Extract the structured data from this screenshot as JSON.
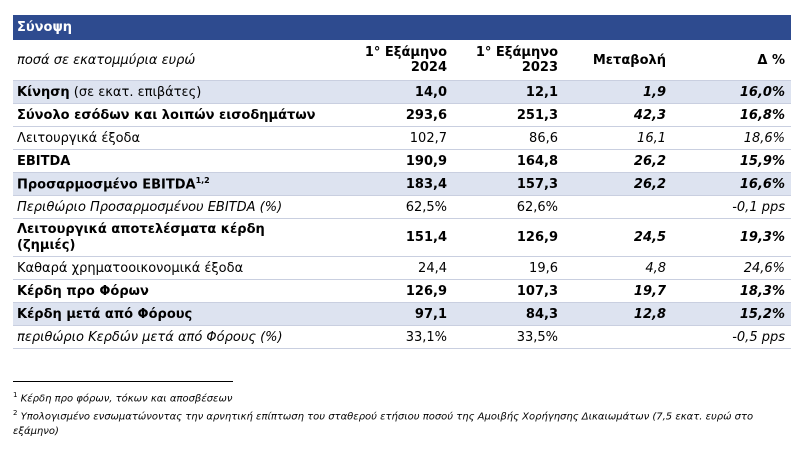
{
  "title": "Σύνοψη",
  "header": {
    "unit_label": "ποσά σε εκατομμύρια ευρώ",
    "col1": "1° Εξάμηνο 2024",
    "col1_a": "1° Εξάμηνο",
    "col1_b": "2024",
    "col2_a": "1° Εξάμηνο",
    "col2_b": "2023",
    "col3": "Μεταβολή",
    "col4": "Δ %"
  },
  "rows": [
    {
      "label_bold": "Κίνηση",
      "label_rest": " (σε εκατ. επιβάτες)",
      "v2024": "14,0",
      "v2023": "12,1",
      "change": "1,9",
      "pct": "16,0%"
    },
    {
      "label": "Σύνολο εσόδων και λοιπών εισοδημάτων",
      "v2024": "293,6",
      "v2023": "251,3",
      "change": "42,3",
      "pct": "16,8%"
    },
    {
      "label": "Λειτουργικά έξοδα",
      "v2024": "102,7",
      "v2023": "86,6",
      "change": "16,1",
      "pct": "18,6%"
    },
    {
      "label": "EBITDA",
      "v2024": "190,9",
      "v2023": "164,8",
      "change": "26,2",
      "pct": "15,9%"
    },
    {
      "label": "Προσαρμοσμένο EBITDA",
      "sup": "1,2",
      "v2024": "183,4",
      "v2023": "157,3",
      "change": "26,2",
      "pct": "16,6%"
    },
    {
      "label": "Περιθώριο Προσαρμοσμένου EBITDA (%)",
      "v2024": "62,5%",
      "v2023": "62,6%",
      "change": "",
      "pct": "-0,1 pps"
    },
    {
      "label": "Λειτουργικά αποτελέσματα κέρδη (ζημιές)",
      "label_a": "Λειτουργικά αποτελέσματα κέρδη",
      "label_b": "(ζημιές)",
      "v2024": "151,4",
      "v2023": "126,9",
      "change": "24,5",
      "pct": "19,3%"
    },
    {
      "label": "Καθαρά χρηματοοικονομικά έξοδα",
      "v2024": "24,4",
      "v2023": "19,6",
      "change": "4,8",
      "pct": "24,6%"
    },
    {
      "label": "Κέρδη προ Φόρων",
      "v2024": "126,9",
      "v2023": "107,3",
      "change": "19,7",
      "pct": "18,3%"
    },
    {
      "label": "Κέρδη μετά από Φόρους",
      "v2024": "97,1",
      "v2023": "84,3",
      "change": "12,8",
      "pct": "15,2%"
    },
    {
      "label": "περιθώριο Κερδών μετά από Φόρους (%)",
      "v2024": "33,1%",
      "v2023": "33,5%",
      "change": "",
      "pct": "-0,5 pps"
    }
  ],
  "footnotes": [
    {
      "num": "1",
      "text": "Κέρδη προ φόρων, τόκων και αποσβέσεων"
    },
    {
      "num": "2",
      "text": "Υπολογισμένο ενσωματώνοντας την αρνητική επίπτωση του σταθερού ετήσιου ποσού της Αμοιβής Χορήγησης Δικαιωμάτων (7,5 εκατ. ευρώ στο εξάμηνο)"
    }
  ],
  "colors": {
    "header_bg": "#2e4b8f",
    "shaded_row": "#dde3f0",
    "row_border": "#c9cfe0"
  }
}
